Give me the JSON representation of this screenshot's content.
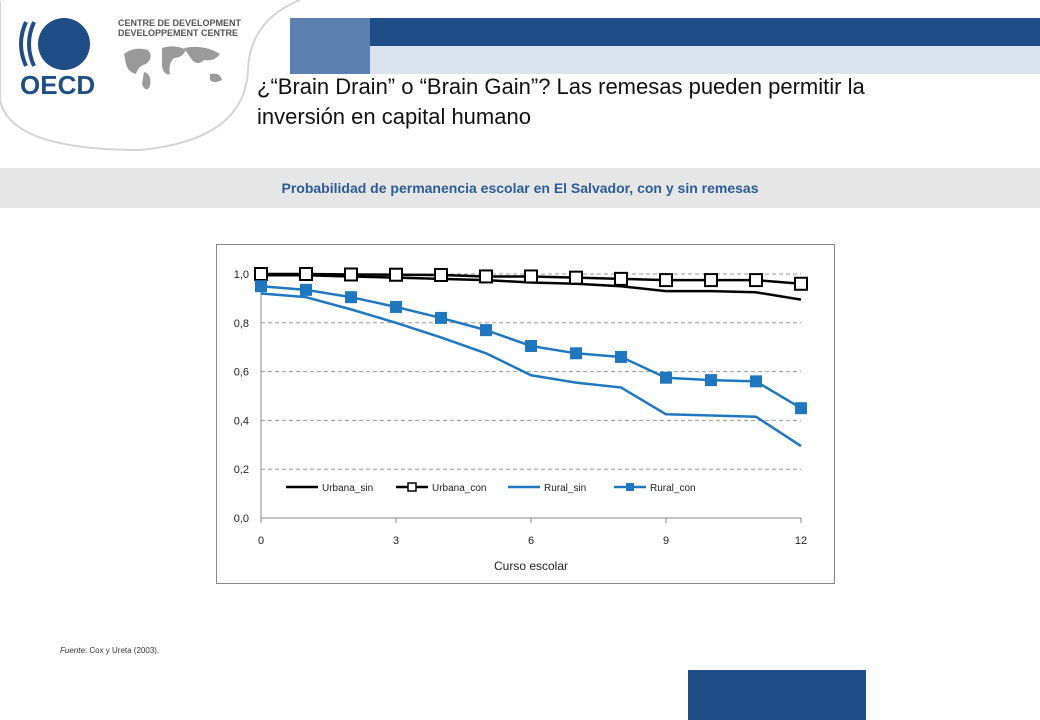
{
  "header": {
    "logo_text": "OECD",
    "centre_line1": "CENTRE DE DEVELOPMENT",
    "centre_line2": "DEVELOPPEMENT CENTRE",
    "title_line1": "¿“Brain Drain” o “Brain Gain”? Las remesas pueden permitir la",
    "title_line2": "inversión en capital humano"
  },
  "caption": "Probabilidad de permanencia escolar en El Salvador, con y sin remesas",
  "source": {
    "label": "Fuente",
    "text": ": Cox y Ureta (2003)."
  },
  "colors": {
    "brand_dark": "#1f4e86",
    "caption_text": "#2a5d99",
    "series_black": "#000000",
    "series_blue": "#1f77c0"
  },
  "chart_data": {
    "type": "line",
    "xlabel": "Curso escolar",
    "ylabel": "",
    "x": [
      0,
      1,
      2,
      3,
      4,
      5,
      6,
      7,
      8,
      9,
      10,
      11,
      12
    ],
    "xlim": [
      0,
      12
    ],
    "ylim": [
      0,
      1.0
    ],
    "xticks": [
      "0",
      "3",
      "6",
      "9",
      "12"
    ],
    "xtick_values": [
      0,
      3,
      6,
      9,
      12
    ],
    "yticks": [
      "0,0",
      "0,2",
      "0,4",
      "0,6",
      "0,8",
      "1,0"
    ],
    "ytick_values": [
      0,
      0.2,
      0.4,
      0.6,
      0.8,
      1.0
    ],
    "grid": "horizontal dashed",
    "legend_position": "bottom-inside",
    "series": [
      {
        "name": "Urbana_sin",
        "color": "#000000",
        "marker": "none",
        "values": [
          0.995,
          0.995,
          0.99,
          0.985,
          0.98,
          0.975,
          0.965,
          0.96,
          0.95,
          0.93,
          0.93,
          0.925,
          0.895
        ]
      },
      {
        "name": "Urbana_con",
        "color": "#000000",
        "marker": "hollow-square",
        "values": [
          1.0,
          1.0,
          0.998,
          0.997,
          0.996,
          0.99,
          0.99,
          0.985,
          0.98,
          0.975,
          0.975,
          0.975,
          0.96
        ]
      },
      {
        "name": "Rural_sin",
        "color": "#1f77c0",
        "marker": "none",
        "values": [
          0.92,
          0.905,
          0.855,
          0.8,
          0.74,
          0.675,
          0.585,
          0.555,
          0.535,
          0.425,
          0.42,
          0.415,
          0.295
        ]
      },
      {
        "name": "Rural_con",
        "color": "#1f77c0",
        "marker": "filled-square",
        "values": [
          0.95,
          0.935,
          0.905,
          0.865,
          0.82,
          0.77,
          0.705,
          0.675,
          0.66,
          0.575,
          0.565,
          0.56,
          0.45
        ]
      }
    ]
  }
}
